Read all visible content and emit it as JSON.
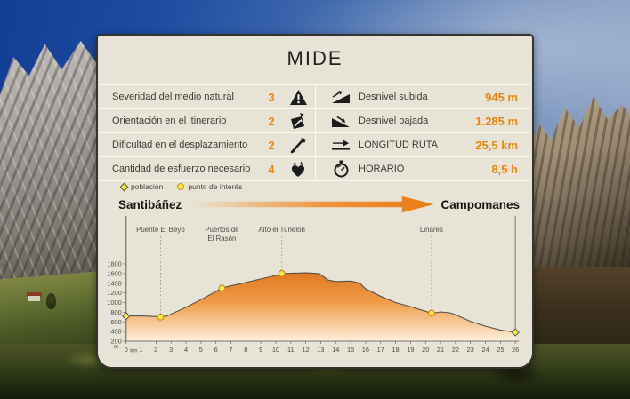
{
  "colors": {
    "accent": "#e8850c",
    "area_top": "#db6e14",
    "area_bottom": "#fdf0dd",
    "marker_fill": "#f4ec3a",
    "marker_poi_stroke": "#cf861a",
    "marker_poblacion_stroke": "#55524a"
  },
  "card": {
    "title": "MIDE",
    "ratings": [
      {
        "label": "Severidad del medio natural",
        "value": "3",
        "icon": "mountain-warning-icon"
      },
      {
        "label": "Orientación en el itinerario",
        "value": "2",
        "icon": "map-orientation-icon"
      },
      {
        "label": "Dificultad en el desplazamiento",
        "value": "2",
        "icon": "scramble-icon"
      },
      {
        "label": "Cantidad de esfuerzo necesario",
        "value": "4",
        "icon": "effort-heart-icon"
      }
    ],
    "stats": [
      {
        "label": "Desnivel subida",
        "value": "945 m",
        "icon": "ascent-icon"
      },
      {
        "label": "Desnivel bajada",
        "value": "1.285 m",
        "icon": "descent-icon"
      },
      {
        "label": "LONGITUD RUTA",
        "value": "25,5 km",
        "icon": "route-length-icon"
      },
      {
        "label": "HORARIO",
        "value": "8,5 h",
        "icon": "stopwatch-icon"
      }
    ]
  },
  "legend": {
    "items": [
      {
        "label": "población",
        "marker": "diamond"
      },
      {
        "label": "punto de interés",
        "marker": "circle"
      }
    ]
  },
  "route": {
    "start": "Santibáñez",
    "end": "Campomanes"
  },
  "chart_data": {
    "type": "area",
    "xlabel": "km",
    "ylabel": "m",
    "xlim": [
      0,
      26
    ],
    "ylim": [
      200,
      1800
    ],
    "x_tick_step": 1,
    "y_tick_step": 200,
    "profile": [
      [
        0,
        720
      ],
      [
        0.8,
        726
      ],
      [
        1.6,
        716
      ],
      [
        2.0,
        710
      ],
      [
        2.3,
        700
      ],
      [
        2.7,
        720
      ],
      [
        3,
        760
      ],
      [
        4,
        900
      ],
      [
        5,
        1060
      ],
      [
        6,
        1230
      ],
      [
        6.4,
        1300
      ],
      [
        7,
        1345
      ],
      [
        8,
        1415
      ],
      [
        9,
        1490
      ],
      [
        10,
        1560
      ],
      [
        10.4,
        1600
      ],
      [
        11,
        1605
      ],
      [
        12,
        1615
      ],
      [
        12.9,
        1600
      ],
      [
        13.5,
        1465
      ],
      [
        14,
        1435
      ],
      [
        15,
        1445
      ],
      [
        15.6,
        1405
      ],
      [
        16,
        1285
      ],
      [
        17,
        1130
      ],
      [
        18,
        1000
      ],
      [
        19,
        915
      ],
      [
        20,
        820
      ],
      [
        20.4,
        780
      ],
      [
        21,
        805
      ],
      [
        21.6,
        788
      ],
      [
        22,
        750
      ],
      [
        22.5,
        680
      ],
      [
        23,
        610
      ],
      [
        24,
        510
      ],
      [
        25,
        432
      ],
      [
        26,
        385
      ]
    ],
    "waypoints": [
      {
        "name": "Puente El Beyo",
        "lines": [
          "Puente El Beyo"
        ],
        "km": 2.3,
        "elev": 700,
        "type": "punto de interés"
      },
      {
        "name": "Puertos de El Rasón",
        "lines": [
          "Puertos de",
          "El Rasón"
        ],
        "km": 6.4,
        "elev": 1300,
        "type": "punto de interés"
      },
      {
        "name": "Alto el Tunelón",
        "lines": [
          "Alto el Tunelón"
        ],
        "km": 10.4,
        "elev": 1600,
        "type": "punto de interés"
      },
      {
        "name": "Linares",
        "lines": [
          "Linares"
        ],
        "km": 20.4,
        "elev": 780,
        "type": "punto de interés"
      }
    ],
    "endpoints": [
      {
        "name": "Santibáñez",
        "km": 0,
        "elev": 720,
        "type": "población"
      },
      {
        "name": "Campomanes",
        "km": 26,
        "elev": 385,
        "type": "población"
      }
    ]
  }
}
